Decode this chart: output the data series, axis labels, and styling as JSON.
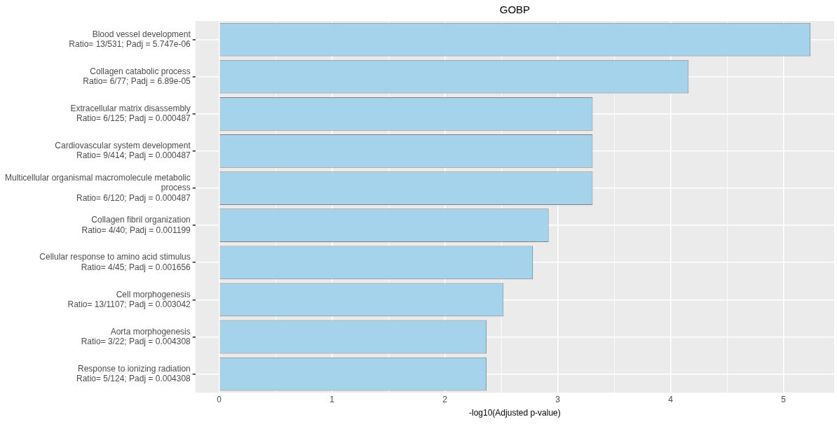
{
  "chart_data": {
    "type": "bar",
    "orientation": "horizontal",
    "title": "GOBP",
    "xlabel": "-log10(Adjusted p-value)",
    "categories": [
      "Blood vessel development\nRatio= 13/531; Padj = 5.747e-06",
      "Collagen catabolic process\nRatio= 6/77; Padj = 6.89e-05",
      "Extracellular matrix disassembly\nRatio= 6/125; Padj = 0.000487",
      "Cardiovascular system development\nRatio= 9/414; Padj = 0.000487",
      "Multicellular organismal macromolecule metabolic\nprocess\nRatio= 6/120; Padj = 0.000487",
      "Collagen fibril organization\nRatio= 4/40; Padj = 0.001199",
      "Cellular response to amino acid stimulus\nRatio= 4/45; Padj = 0.001656",
      "Cell morphogenesis\nRatio= 13/1107; Padj = 0.003042",
      "Aorta morphogenesis\nRatio= 3/22; Padj = 0.004308",
      "Response to ionizing radiation\nRatio= 5/124; Padj = 0.004308"
    ],
    "values": [
      5.24,
      4.16,
      3.31,
      3.31,
      3.31,
      2.92,
      2.78,
      2.52,
      2.37,
      2.37
    ],
    "color": "#a6d3ec",
    "xlim": [
      -0.21,
      5.45
    ],
    "xticks": [
      0,
      {
        "value": 0.5,
        "label": null
      },
      1,
      {
        "value": 1.5,
        "label": null
      },
      2,
      {
        "value": 2.5,
        "label": null
      },
      3,
      {
        "value": 3.5,
        "label": null
      },
      4,
      {
        "value": 4.5,
        "label": null
      },
      5
    ],
    "grid": true,
    "legend": false
  }
}
